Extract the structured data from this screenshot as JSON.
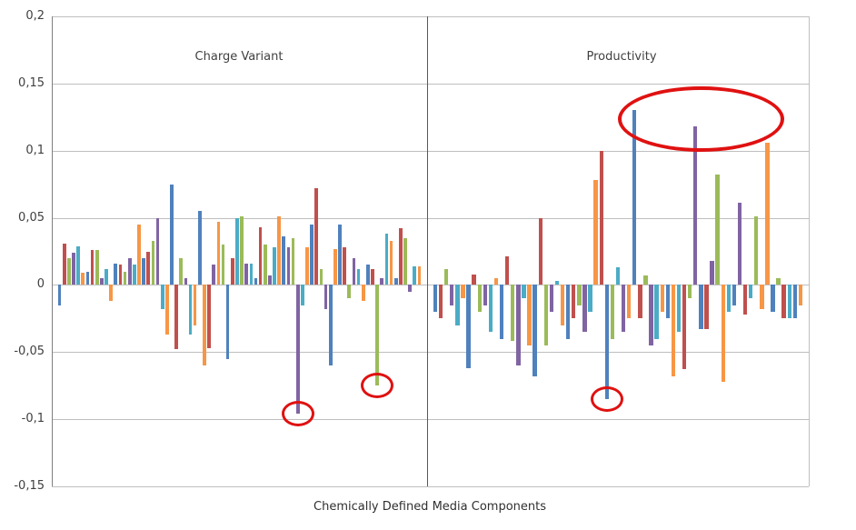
{
  "chart_data": {
    "type": "bar",
    "title": "",
    "xlabel": "Chemically Defined Media Components",
    "ylim": [
      -0.15,
      0.2
    ],
    "y_ticks": [
      {
        "label": "0,2",
        "value": 0.2
      },
      {
        "label": "0,15",
        "value": 0.15
      },
      {
        "label": "0,1",
        "value": 0.1
      },
      {
        "label": "0,05",
        "value": 0.05
      },
      {
        "label": "0",
        "value": 0
      },
      {
        "label": "-0,05",
        "value": -0.05
      },
      {
        "label": "-0,1",
        "value": -0.1
      },
      {
        "label": "-0,15",
        "value": -0.15
      }
    ],
    "palette": [
      "#4F81BD",
      "#C0504D",
      "#9BBB59",
      "#8064A2",
      "#4BACC6",
      "#F79646"
    ],
    "grid_color": "#bfbfbf",
    "axis_color": "#7f7f7f",
    "divider_color": "#595959",
    "annotation_color": "#e01111",
    "sections": [
      {
        "id": "charge_variant",
        "title": "Charge Variant",
        "bars": [
          [
            -0.015,
            0
          ],
          [
            0.031,
            1
          ],
          [
            0.02,
            2
          ],
          [
            0.024,
            3
          ],
          [
            0.029,
            4
          ],
          [
            0.009,
            5
          ],
          [
            0.01,
            0
          ],
          [
            0.026,
            1
          ],
          [
            0.026,
            2
          ],
          [
            0.005,
            3
          ],
          [
            0.012,
            4
          ],
          [
            -0.012,
            5
          ],
          [
            0.016,
            0
          ],
          [
            0.015,
            1
          ],
          [
            0.01,
            2
          ],
          [
            0.02,
            3
          ],
          [
            0.015,
            4
          ],
          [
            0.045,
            5
          ],
          [
            0.02,
            0
          ],
          [
            0.025,
            1
          ],
          [
            0.033,
            2
          ],
          [
            0.05,
            3
          ],
          [
            -0.018,
            4
          ],
          [
            -0.037,
            5
          ],
          [
            0.075,
            0
          ],
          [
            -0.048,
            1
          ],
          [
            0.02,
            2
          ],
          [
            0.005,
            3
          ],
          [
            -0.037,
            4
          ],
          [
            -0.03,
            5
          ],
          [
            0.055,
            0
          ],
          [
            -0.06,
            5
          ],
          [
            -0.047,
            1
          ],
          [
            0.015,
            3
          ],
          [
            0.047,
            5
          ],
          [
            0.03,
            2
          ],
          [
            -0.055,
            0
          ],
          [
            0.02,
            1
          ],
          [
            0.05,
            4
          ],
          [
            0.051,
            2
          ],
          [
            0.016,
            3
          ],
          [
            0.016,
            4
          ],
          [
            0.005,
            0
          ],
          [
            0.043,
            1
          ],
          [
            0.03,
            2
          ],
          [
            0.007,
            3
          ],
          [
            0.028,
            4
          ],
          [
            0.051,
            5
          ],
          [
            0.036,
            0
          ],
          [
            0.028,
            3
          ],
          [
            0.035,
            2
          ],
          [
            -0.096,
            3
          ],
          [
            -0.015,
            4
          ],
          [
            0.028,
            5
          ],
          [
            0.045,
            0
          ],
          [
            0.072,
            1
          ],
          [
            0.012,
            2
          ],
          [
            -0.018,
            3
          ],
          [
            -0.06,
            0
          ],
          [
            0.027,
            5
          ],
          [
            0.045,
            0
          ],
          [
            0.028,
            1
          ],
          [
            -0.01,
            2
          ],
          [
            0.02,
            3
          ],
          [
            0.012,
            4
          ],
          [
            -0.012,
            5
          ],
          [
            0.015,
            0
          ],
          [
            0.012,
            1
          ],
          [
            -0.075,
            2
          ],
          [
            0.005,
            3
          ],
          [
            0.038,
            4
          ],
          [
            0.033,
            5
          ],
          [
            0.005,
            0
          ],
          [
            0.042,
            1
          ],
          [
            0.035,
            2
          ],
          [
            -0.005,
            3
          ],
          [
            0.014,
            4
          ],
          [
            0.014,
            5
          ]
        ]
      },
      {
        "id": "productivity",
        "title": "Productivity",
        "bars": [
          [
            -0.02,
            0
          ],
          [
            -0.025,
            1
          ],
          [
            0.012,
            2
          ],
          [
            -0.015,
            3
          ],
          [
            -0.03,
            4
          ],
          [
            -0.01,
            5
          ],
          [
            -0.062,
            0
          ],
          [
            0.008,
            1
          ],
          [
            -0.02,
            2
          ],
          [
            -0.015,
            3
          ],
          [
            -0.035,
            4
          ],
          [
            0.005,
            5
          ],
          [
            -0.04,
            0
          ],
          [
            0.021,
            1
          ],
          [
            -0.042,
            2
          ],
          [
            -0.06,
            3
          ],
          [
            -0.01,
            4
          ],
          [
            -0.045,
            5
          ],
          [
            -0.068,
            0
          ],
          [
            0.05,
            1
          ],
          [
            -0.045,
            2
          ],
          [
            -0.02,
            3
          ],
          [
            0.003,
            4
          ],
          [
            -0.03,
            5
          ],
          [
            -0.04,
            0
          ],
          [
            -0.025,
            1
          ],
          [
            -0.015,
            2
          ],
          [
            -0.035,
            3
          ],
          [
            -0.02,
            4
          ],
          [
            0.078,
            5
          ],
          [
            0.1,
            1
          ],
          [
            -0.085,
            0
          ],
          [
            -0.04,
            2
          ],
          [
            0.013,
            4
          ],
          [
            -0.035,
            3
          ],
          [
            -0.025,
            5
          ],
          [
            0.13,
            0
          ],
          [
            -0.025,
            1
          ],
          [
            0.007,
            2
          ],
          [
            -0.045,
            3
          ],
          [
            -0.04,
            4
          ],
          [
            -0.02,
            5
          ],
          [
            -0.025,
            0
          ],
          [
            -0.068,
            5
          ],
          [
            -0.035,
            4
          ],
          [
            -0.063,
            1
          ],
          [
            -0.01,
            2
          ],
          [
            0.118,
            3
          ],
          [
            -0.033,
            0
          ],
          [
            -0.033,
            1
          ],
          [
            0.018,
            3
          ],
          [
            0.082,
            2
          ],
          [
            -0.072,
            5
          ],
          [
            -0.02,
            4
          ],
          [
            -0.015,
            0
          ],
          [
            0.061,
            3
          ],
          [
            -0.022,
            1
          ],
          [
            -0.01,
            4
          ],
          [
            0.051,
            2
          ],
          [
            -0.018,
            5
          ],
          [
            0.106,
            5
          ],
          [
            -0.02,
            0
          ],
          [
            0.005,
            2
          ],
          [
            -0.025,
            1
          ],
          [
            -0.025,
            4
          ],
          [
            -0.025,
            0
          ],
          [
            -0.015,
            5
          ]
        ]
      }
    ],
    "annotations": [
      {
        "kind": "ellipse",
        "section": 1,
        "from_bar": 35,
        "to_bar": 61,
        "v_top": 0.148,
        "v_bottom": 0.099
      },
      {
        "kind": "circle",
        "section": 0,
        "bar": 51
      },
      {
        "kind": "circle",
        "section": 0,
        "bar": 68
      },
      {
        "kind": "circle",
        "section": 1,
        "bar": 31
      }
    ]
  }
}
